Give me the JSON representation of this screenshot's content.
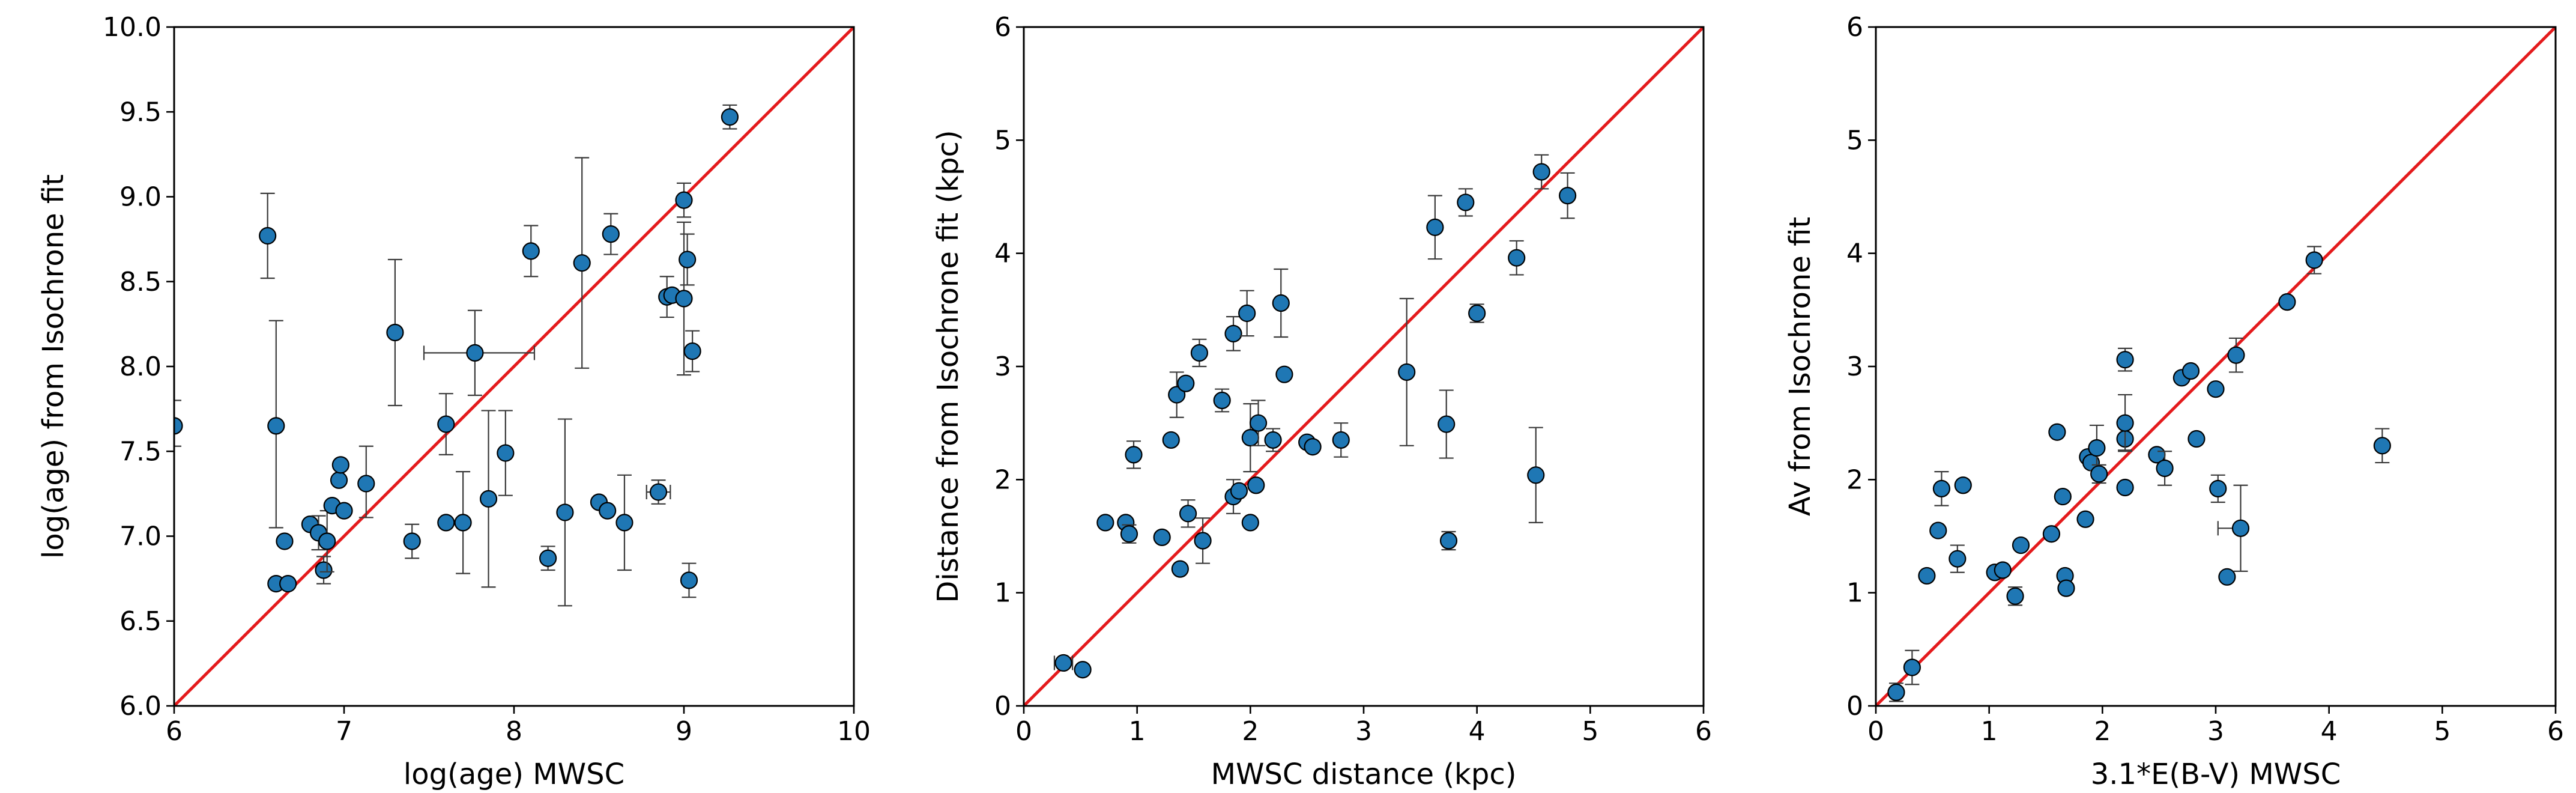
{
  "colors": {
    "point": "#1f77b4",
    "line": "#e41a1c"
  },
  "chart_data": [
    {
      "type": "scatter",
      "xlabel": "log(age) MWSC",
      "ylabel": "log(age) from Isochrone fit",
      "xlim": [
        6,
        10
      ],
      "ylim": [
        6.0,
        10.0
      ],
      "xticks": [
        "6",
        "7",
        "8",
        "9",
        "10"
      ],
      "yticks": [
        "6.0",
        "6.5",
        "7.0",
        "7.5",
        "8.0",
        "8.5",
        "9.0",
        "9.5",
        "10.0"
      ],
      "reference_line": "y = x",
      "points": [
        {
          "x": 6.0,
          "y": 7.65,
          "yerr": [
            0.12,
            0.15
          ]
        },
        {
          "x": 6.55,
          "y": 8.77,
          "yerr": [
            0.25,
            0.25
          ]
        },
        {
          "x": 6.6,
          "y": 6.72
        },
        {
          "x": 6.6,
          "y": 7.65,
          "yerr": [
            0.6,
            0.62
          ]
        },
        {
          "x": 6.65,
          "y": 6.97
        },
        {
          "x": 6.67,
          "y": 6.72
        },
        {
          "x": 6.8,
          "y": 7.07
        },
        {
          "x": 6.85,
          "y": 7.02,
          "yerr": [
            0.1,
            0.1
          ]
        },
        {
          "x": 6.88,
          "y": 6.8,
          "yerr": [
            0.08,
            0.08
          ]
        },
        {
          "x": 6.9,
          "y": 6.97,
          "yerr": [
            0.18,
            0.18
          ]
        },
        {
          "x": 6.93,
          "y": 7.18
        },
        {
          "x": 6.97,
          "y": 7.33
        },
        {
          "x": 6.98,
          "y": 7.42
        },
        {
          "x": 7.0,
          "y": 7.15
        },
        {
          "x": 7.13,
          "y": 7.31,
          "yerr": [
            0.2,
            0.22
          ]
        },
        {
          "x": 7.3,
          "y": 8.2,
          "yerr": [
            0.43,
            0.43
          ]
        },
        {
          "x": 7.4,
          "y": 6.97,
          "yerr": [
            0.1,
            0.1
          ]
        },
        {
          "x": 7.6,
          "y": 7.66,
          "yerr": [
            0.18,
            0.18
          ]
        },
        {
          "x": 7.6,
          "y": 7.08
        },
        {
          "x": 7.7,
          "y": 7.08,
          "yerr": [
            0.3,
            0.3
          ]
        },
        {
          "x": 7.77,
          "y": 8.08,
          "xerr": [
            0.3,
            0.35
          ],
          "yerr": [
            0.25,
            0.25
          ]
        },
        {
          "x": 7.85,
          "y": 7.22,
          "yerr": [
            0.52,
            0.52
          ]
        },
        {
          "x": 7.95,
          "y": 7.49,
          "yerr": [
            0.25,
            0.25
          ]
        },
        {
          "x": 8.1,
          "y": 8.68,
          "yerr": [
            0.15,
            0.15
          ]
        },
        {
          "x": 8.2,
          "y": 6.87,
          "yerr": [
            0.07,
            0.07
          ]
        },
        {
          "x": 8.3,
          "y": 7.14,
          "yerr": [
            0.55,
            0.55
          ]
        },
        {
          "x": 8.4,
          "y": 8.61,
          "yerr": [
            0.62,
            0.62
          ]
        },
        {
          "x": 8.5,
          "y": 7.2
        },
        {
          "x": 8.55,
          "y": 7.15
        },
        {
          "x": 8.57,
          "y": 8.78,
          "yerr": [
            0.12,
            0.12
          ]
        },
        {
          "x": 8.65,
          "y": 7.08,
          "yerr": [
            0.28,
            0.28
          ]
        },
        {
          "x": 8.85,
          "y": 7.26,
          "xerr": [
            0.07,
            0.07
          ],
          "yerr": [
            0.07,
            0.07
          ]
        },
        {
          "x": 8.9,
          "y": 8.41,
          "yerr": [
            0.12,
            0.12
          ]
        },
        {
          "x": 8.93,
          "y": 8.42
        },
        {
          "x": 9.0,
          "y": 8.98,
          "yerr": [
            0.1,
            0.1
          ]
        },
        {
          "x": 9.0,
          "y": 8.4,
          "yerr": [
            0.45,
            0.45
          ]
        },
        {
          "x": 9.02,
          "y": 8.63,
          "yerr": [
            0.15,
            0.15
          ]
        },
        {
          "x": 9.05,
          "y": 8.09,
          "yerr": [
            0.12,
            0.12
          ]
        },
        {
          "x": 9.03,
          "y": 6.74,
          "yerr": [
            0.1,
            0.1
          ]
        },
        {
          "x": 9.27,
          "y": 9.47,
          "yerr": [
            0.07,
            0.07
          ]
        }
      ]
    },
    {
      "type": "scatter",
      "xlabel": "MWSC distance (kpc)",
      "ylabel": "Distance from Isochrone fit (kpc)",
      "xlim": [
        0,
        6
      ],
      "ylim": [
        0,
        6
      ],
      "xticks": [
        "0",
        "1",
        "2",
        "3",
        "4",
        "5",
        "6"
      ],
      "yticks": [
        "0",
        "1",
        "2",
        "3",
        "4",
        "5",
        "6"
      ],
      "reference_line": "y = x",
      "points": [
        {
          "x": 0.35,
          "y": 0.38,
          "xerr": [
            0.08,
            0.08
          ]
        },
        {
          "x": 0.52,
          "y": 0.32
        },
        {
          "x": 0.72,
          "y": 1.62
        },
        {
          "x": 0.9,
          "y": 1.62
        },
        {
          "x": 0.93,
          "y": 1.52,
          "yerr": [
            0.08,
            0.08
          ]
        },
        {
          "x": 0.97,
          "y": 2.22,
          "yerr": [
            0.12,
            0.12
          ]
        },
        {
          "x": 1.22,
          "y": 1.49
        },
        {
          "x": 1.3,
          "y": 2.35
        },
        {
          "x": 1.35,
          "y": 2.75,
          "yerr": [
            0.2,
            0.2
          ]
        },
        {
          "x": 1.38,
          "y": 1.21
        },
        {
          "x": 1.43,
          "y": 2.85
        },
        {
          "x": 1.45,
          "y": 1.7,
          "yerr": [
            0.12,
            0.12
          ]
        },
        {
          "x": 1.55,
          "y": 3.12,
          "yerr": [
            0.12,
            0.12
          ]
        },
        {
          "x": 1.58,
          "y": 1.46,
          "yerr": [
            0.2,
            0.2
          ]
        },
        {
          "x": 1.75,
          "y": 2.7,
          "yerr": [
            0.1,
            0.1
          ]
        },
        {
          "x": 1.85,
          "y": 3.29,
          "yerr": [
            0.15,
            0.15
          ]
        },
        {
          "x": 1.85,
          "y": 1.85,
          "yerr": [
            0.15,
            0.15
          ]
        },
        {
          "x": 1.9,
          "y": 1.9
        },
        {
          "x": 1.97,
          "y": 3.47,
          "yerr": [
            0.2,
            0.2
          ]
        },
        {
          "x": 2.0,
          "y": 2.37,
          "yerr": [
            0.3,
            0.3
          ]
        },
        {
          "x": 2.0,
          "y": 1.62
        },
        {
          "x": 2.05,
          "y": 1.95
        },
        {
          "x": 2.07,
          "y": 2.5,
          "yerr": [
            0.2,
            0.2
          ]
        },
        {
          "x": 2.2,
          "y": 2.35,
          "yerr": [
            0.1,
            0.1
          ]
        },
        {
          "x": 2.27,
          "y": 3.56,
          "yerr": [
            0.3,
            0.3
          ]
        },
        {
          "x": 2.3,
          "y": 2.93
        },
        {
          "x": 2.5,
          "y": 2.33
        },
        {
          "x": 2.55,
          "y": 2.29
        },
        {
          "x": 2.8,
          "y": 2.35,
          "yerr": [
            0.15,
            0.15
          ]
        },
        {
          "x": 3.38,
          "y": 2.95,
          "yerr": [
            0.65,
            0.65
          ]
        },
        {
          "x": 3.63,
          "y": 4.23,
          "yerr": [
            0.28,
            0.28
          ]
        },
        {
          "x": 3.73,
          "y": 2.49,
          "yerr": [
            0.3,
            0.3
          ]
        },
        {
          "x": 3.75,
          "y": 1.46,
          "yerr": [
            0.08,
            0.08
          ]
        },
        {
          "x": 3.9,
          "y": 4.45,
          "yerr": [
            0.12,
            0.12
          ]
        },
        {
          "x": 4.0,
          "y": 3.47,
          "yerr": [
            0.08,
            0.08
          ]
        },
        {
          "x": 4.35,
          "y": 3.96,
          "yerr": [
            0.15,
            0.15
          ]
        },
        {
          "x": 4.52,
          "y": 2.04,
          "yerr": [
            0.42,
            0.42
          ]
        },
        {
          "x": 4.57,
          "y": 4.72,
          "yerr": [
            0.15,
            0.15
          ]
        },
        {
          "x": 4.8,
          "y": 4.51,
          "yerr": [
            0.2,
            0.2
          ]
        }
      ]
    },
    {
      "type": "scatter",
      "xlabel": "3.1*E(B-V) MWSC",
      "ylabel": "Av from Isochrone fit",
      "xlim": [
        0,
        6
      ],
      "ylim": [
        0,
        6
      ],
      "xticks": [
        "0",
        "1",
        "2",
        "3",
        "4",
        "5",
        "6"
      ],
      "yticks": [
        "0",
        "1",
        "2",
        "3",
        "4",
        "5",
        "6"
      ],
      "reference_line": "y = x",
      "points": [
        {
          "x": 0.18,
          "y": 0.12,
          "yerr": [
            0.08,
            0.08
          ]
        },
        {
          "x": 0.32,
          "y": 0.34,
          "yerr": [
            0.15,
            0.15
          ]
        },
        {
          "x": 0.45,
          "y": 1.15
        },
        {
          "x": 0.55,
          "y": 1.55
        },
        {
          "x": 0.58,
          "y": 1.92,
          "yerr": [
            0.15,
            0.15
          ]
        },
        {
          "x": 0.72,
          "y": 1.3,
          "yerr": [
            0.12,
            0.12
          ]
        },
        {
          "x": 0.77,
          "y": 1.95
        },
        {
          "x": 1.05,
          "y": 1.18
        },
        {
          "x": 1.12,
          "y": 1.2
        },
        {
          "x": 1.23,
          "y": 0.97,
          "yerr": [
            0.08,
            0.08
          ]
        },
        {
          "x": 1.28,
          "y": 1.42
        },
        {
          "x": 1.55,
          "y": 1.52
        },
        {
          "x": 1.6,
          "y": 2.42
        },
        {
          "x": 1.65,
          "y": 1.85
        },
        {
          "x": 1.67,
          "y": 1.15
        },
        {
          "x": 1.68,
          "y": 1.04
        },
        {
          "x": 1.85,
          "y": 1.65
        },
        {
          "x": 1.87,
          "y": 2.2
        },
        {
          "x": 1.9,
          "y": 2.15
        },
        {
          "x": 1.95,
          "y": 2.28,
          "yerr": [
            0.2,
            0.2
          ]
        },
        {
          "x": 1.97,
          "y": 2.05,
          "yerr": [
            0.08,
            0.08
          ]
        },
        {
          "x": 2.2,
          "y": 1.93
        },
        {
          "x": 2.2,
          "y": 2.36,
          "yerr": [
            0.1,
            0.1
          ]
        },
        {
          "x": 2.2,
          "y": 2.5,
          "yerr": [
            0.25,
            0.25
          ]
        },
        {
          "x": 2.2,
          "y": 3.06,
          "yerr": [
            0.1,
            0.1
          ]
        },
        {
          "x": 2.48,
          "y": 2.22
        },
        {
          "x": 2.55,
          "y": 2.1,
          "yerr": [
            0.15,
            0.15
          ]
        },
        {
          "x": 2.7,
          "y": 2.9
        },
        {
          "x": 2.78,
          "y": 2.96
        },
        {
          "x": 2.83,
          "y": 2.36
        },
        {
          "x": 3.0,
          "y": 2.8
        },
        {
          "x": 3.02,
          "y": 1.92,
          "yerr": [
            0.12,
            0.12
          ]
        },
        {
          "x": 3.1,
          "y": 1.14
        },
        {
          "x": 3.18,
          "y": 3.1,
          "yerr": [
            0.15,
            0.15
          ]
        },
        {
          "x": 3.22,
          "y": 1.57,
          "xerr": [
            0.2,
            0.0
          ],
          "yerr": [
            0.38,
            0.38
          ]
        },
        {
          "x": 3.63,
          "y": 3.57
        },
        {
          "x": 3.87,
          "y": 3.94,
          "yerr": [
            0.12,
            0.12
          ]
        },
        {
          "x": 4.47,
          "y": 2.3,
          "yerr": [
            0.15,
            0.15
          ]
        }
      ]
    }
  ]
}
